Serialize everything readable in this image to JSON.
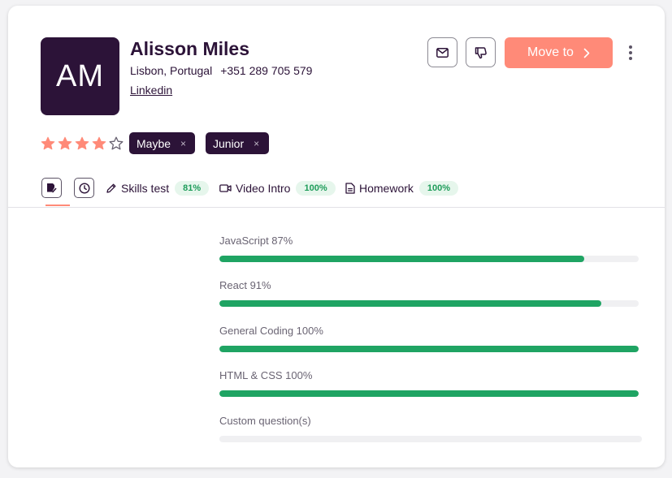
{
  "profile": {
    "initials": "AM",
    "name": "Alisson Miles",
    "location": "Lisbon, Portugal",
    "phone": "+351 289 705 579",
    "link": "Linkedin"
  },
  "actions": {
    "email_icon": "mail-icon",
    "reject_icon": "thumbs-down-icon",
    "move_label": "Move to",
    "move_icon": "chevron-right-icon",
    "more_icon": "kebab-menu-icon"
  },
  "rating": {
    "value": 4,
    "max": 5,
    "color": "#ff8a78"
  },
  "tags": [
    {
      "label": "Maybe",
      "remove": "×"
    },
    {
      "label": "Junior",
      "remove": "×"
    }
  ],
  "tabs": [
    {
      "label": "Skills test",
      "badge": "81%",
      "icon": "pencil-icon"
    },
    {
      "label": "Video Intro",
      "badge": "100%",
      "icon": "video-icon"
    },
    {
      "label": "Homework",
      "badge": "100%",
      "icon": "document-icon"
    }
  ],
  "skills": [
    {
      "label": "JavaScript 87%",
      "value": 87
    },
    {
      "label": "React 91%",
      "value": 91
    },
    {
      "label": "General Coding 100%",
      "value": 100
    },
    {
      "label": "HTML & CSS 100%",
      "value": 100
    },
    {
      "label": "Custom question(s)",
      "value": 0
    }
  ],
  "colors": {
    "accent": "#ff8a78",
    "brand": "#2c1338",
    "success": "#1fa463"
  }
}
